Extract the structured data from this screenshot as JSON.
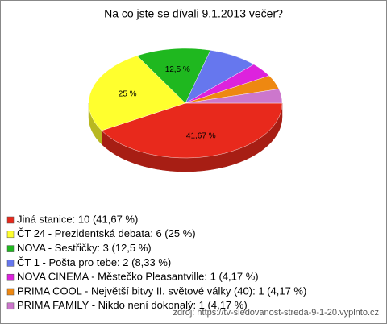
{
  "chart_data": {
    "type": "pie",
    "title": "Na co jste se dívali 9.1.2013 večer?",
    "categories": [
      "Jiná stanice: 10 (41,67 %)",
      "ČT 24 - Prezidentská debata: 6 (25 %)",
      "NOVA - Sestřičky: 3 (12,5 %)",
      "ČT 1 - Pošta pro tebe: 2 (8,33 %)",
      "NOVA CINEMA - Městečko Pleasantville: 1 (4,17 %)",
      "PRIMA COOL - Největší bitvy II. světové války (40): 1 (4,17 %)",
      "PRIMA FAMILY - Nikdo není dokonalý: 1 (4,17 %)"
    ],
    "values": [
      41.67,
      25,
      12.5,
      8.33,
      4.17,
      4.17,
      4.17
    ],
    "value_labels": [
      "41,67 %",
      "25 %",
      "12,5 %",
      null,
      null,
      null,
      null
    ],
    "colors": [
      "#e8291c",
      "#ffff2e",
      "#1fb81f",
      "#6677ee",
      "#dd22dd",
      "#ee8811",
      "#cc77cc"
    ],
    "source": "zdroj: https://tv-sledovanost-streda-9-1-20.vyplnto.cz"
  }
}
